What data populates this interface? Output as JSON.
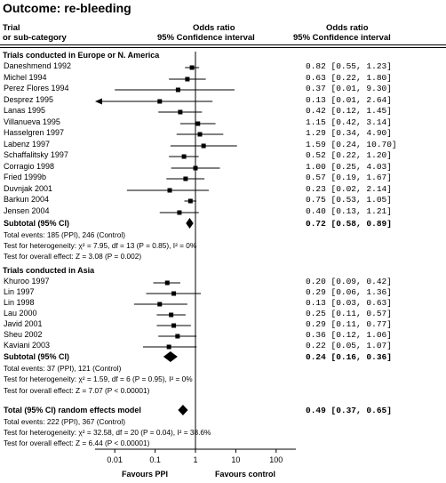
{
  "title": "Outcome:  re-bleeding",
  "header": {
    "col1_line1": "Trial",
    "col1_line2": "or sub-category",
    "col2_line1": "Odds ratio",
    "col2_line2": "95% Confidence interval",
    "col3_line1": "Odds ratio",
    "col3_line2": "95% Confidence interval"
  },
  "footer": {
    "favours_left": "Favours PPI",
    "favours_right": "Favours control"
  },
  "chart_data": {
    "type": "forest",
    "x_scale": "log",
    "xlim": [
      0.001,
      1000
    ],
    "x_ticks": [
      {
        "value": 0.01,
        "label": "0.01"
      },
      {
        "value": 0.1,
        "label": "0.1"
      },
      {
        "value": 1,
        "label": "1"
      },
      {
        "value": 10,
        "label": "10"
      },
      {
        "value": 100,
        "label": "100"
      }
    ],
    "groups": [
      {
        "title": "Trials conducted in Europe or N. America",
        "studies": [
          {
            "name": "Daneshmend 1992",
            "or": 0.82,
            "lo": 0.55,
            "hi": 1.23,
            "ci": "0.82 [0.55, 1.23]"
          },
          {
            "name": "Michel 1994",
            "or": 0.63,
            "lo": 0.22,
            "hi": 1.8,
            "ci": "0.63 [0.22, 1.80]"
          },
          {
            "name": "Perez Flores 1994",
            "or": 0.37,
            "lo": 0.01,
            "hi": 9.3,
            "ci": "0.37 [0.01, 9.30]"
          },
          {
            "name": "Desprez 1995",
            "or": 0.13,
            "lo": 0.01,
            "hi": 2.64,
            "ci": "0.13 [0.01, 2.64]",
            "arrow_left": true
          },
          {
            "name": "Lanas 1995",
            "or": 0.42,
            "lo": 0.12,
            "hi": 1.45,
            "ci": "0.42 [0.12, 1.45]"
          },
          {
            "name": "Villanueva 1995",
            "or": 1.15,
            "lo": 0.42,
            "hi": 3.14,
            "ci": "1.15 [0.42, 3.14]"
          },
          {
            "name": "Hasselgren 1997",
            "or": 1.29,
            "lo": 0.34,
            "hi": 4.9,
            "ci": "1.29 [0.34, 4.90]"
          },
          {
            "name": "Labenz 1997",
            "or": 1.59,
            "lo": 0.24,
            "hi": 10.7,
            "ci": "1.59 [0.24, 10.70]"
          },
          {
            "name": "Schaffalitsky 1997",
            "or": 0.52,
            "lo": 0.22,
            "hi": 1.2,
            "ci": "0.52 [0.22, 1.20]"
          },
          {
            "name": "Corragio 1998",
            "or": 1.0,
            "lo": 0.25,
            "hi": 4.03,
            "ci": "1.00 [0.25, 4.03]"
          },
          {
            "name": "Fried 1999b",
            "or": 0.57,
            "lo": 0.19,
            "hi": 1.67,
            "ci": "0.57 [0.19, 1.67]"
          },
          {
            "name": "Duvnjak 2001",
            "or": 0.23,
            "lo": 0.02,
            "hi": 2.14,
            "ci": "0.23 [0.02, 2.14]"
          },
          {
            "name": "Barkun 2004",
            "or": 0.75,
            "lo": 0.53,
            "hi": 1.05,
            "ci": "0.75 [0.53, 1.05]"
          },
          {
            "name": "Jensen 2004",
            "or": 0.4,
            "lo": 0.13,
            "hi": 1.21,
            "ci": "0.40 [0.13, 1.21]"
          }
        ],
        "subtotal": {
          "label": "Subtotal (95% CI)",
          "or": 0.72,
          "lo": 0.58,
          "hi": 0.89,
          "ci": "0.72 [0.58, 0.89]"
        },
        "total_events": "Total events: 185 (PPI), 246 (Control)",
        "heterogeneity": "Test for heterogeneity: χ² = 7.95, df = 13 (P = 0.85), I² = 0%",
        "overall_effect": "Test for overall effect: Z = 3.08 (P = 0.002)"
      },
      {
        "title": "Trials conducted in Asia",
        "studies": [
          {
            "name": "Khuroo 1997",
            "or": 0.2,
            "lo": 0.09,
            "hi": 0.42,
            "ci": "0.20 [0.09, 0.42]"
          },
          {
            "name": "Lin 1997",
            "or": 0.29,
            "lo": 0.06,
            "hi": 1.36,
            "ci": "0.29 [0.06, 1.36]"
          },
          {
            "name": "Lin 1998",
            "or": 0.13,
            "lo": 0.03,
            "hi": 0.63,
            "ci": "0.13 [0.03, 0.63]"
          },
          {
            "name": "Lau 2000",
            "or": 0.25,
            "lo": 0.11,
            "hi": 0.57,
            "ci": "0.25 [0.11, 0.57]"
          },
          {
            "name": "Javid 2001",
            "or": 0.29,
            "lo": 0.11,
            "hi": 0.77,
            "ci": "0.29 [0.11, 0.77]"
          },
          {
            "name": "Sheu 2002",
            "or": 0.36,
            "lo": 0.12,
            "hi": 1.06,
            "ci": "0.36 [0.12, 1.06]"
          },
          {
            "name": "Kaviani 2003",
            "or": 0.22,
            "lo": 0.05,
            "hi": 1.07,
            "ci": "0.22 [0.05, 1.07]"
          }
        ],
        "subtotal": {
          "label": "Subtotal (95% CI)",
          "or": 0.24,
          "lo": 0.16,
          "hi": 0.36,
          "ci": "0.24 [0.16, 0.36]"
        },
        "total_events": "Total events: 37 (PPI), 121 (Control)",
        "heterogeneity": "Test for heterogeneity: χ² = 1.59, df = 6 (P = 0.95), I² = 0%",
        "overall_effect": "Test for overall effect: Z = 7.07 (P < 0.00001)"
      }
    ],
    "total": {
      "label": "Total (95% CI) random effects model",
      "or": 0.49,
      "lo": 0.37,
      "hi": 0.65,
      "ci": "0.49 [0.37, 0.65]",
      "total_events": "Total events: 222 (PPI), 367 (Control)",
      "heterogeneity": "Test for heterogeneity: χ² = 32.58, df = 20 (P = 0.04), I² = 38.6%",
      "overall_effect": "Test for overall effect: Z = 6.44 (P < 0.00001)"
    }
  }
}
